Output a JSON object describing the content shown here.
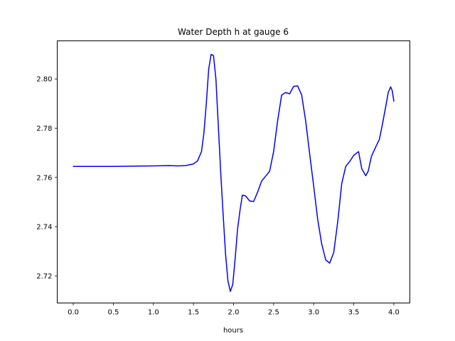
{
  "chart_data": {
    "type": "line",
    "title": "Water Depth h at gauge 6",
    "xlabel": "hours",
    "ylabel": "",
    "xlim": [
      -0.2,
      4.2
    ],
    "ylim": [
      2.709,
      2.8155
    ],
    "xticks": [
      0.0,
      0.5,
      1.0,
      1.5,
      2.0,
      2.5,
      3.0,
      3.5,
      4.0
    ],
    "xtick_labels": [
      "0.0",
      "0.5",
      "1.0",
      "1.5",
      "2.0",
      "2.5",
      "3.0",
      "3.5",
      "4.0"
    ],
    "yticks": [
      2.72,
      2.74,
      2.76,
      2.78,
      2.8
    ],
    "ytick_labels": [
      "2.72",
      "2.74",
      "2.76",
      "2.78",
      "2.80"
    ],
    "grid": false,
    "legend": false,
    "series": [
      {
        "color": "#0000ff",
        "x": [
          0.0,
          0.5,
          1.0,
          1.2,
          1.3,
          1.4,
          1.5,
          1.55,
          1.6,
          1.63,
          1.66,
          1.69,
          1.72,
          1.75,
          1.78,
          1.81,
          1.84,
          1.87,
          1.9,
          1.93,
          1.96,
          1.99,
          2.02,
          2.05,
          2.08,
          2.11,
          2.15,
          2.2,
          2.25,
          2.3,
          2.35,
          2.4,
          2.45,
          2.5,
          2.55,
          2.6,
          2.65,
          2.7,
          2.75,
          2.8,
          2.85,
          2.9,
          2.95,
          3.0,
          3.05,
          3.1,
          3.15,
          3.2,
          3.25,
          3.3,
          3.35,
          3.4,
          3.45,
          3.5,
          3.56,
          3.6,
          3.65,
          3.68,
          3.72,
          3.78,
          3.82,
          3.86,
          3.9,
          3.93,
          3.96,
          3.98,
          4.0
        ],
        "y": [
          2.7645,
          2.7645,
          2.7647,
          2.7648,
          2.7647,
          2.7648,
          2.7655,
          2.7667,
          2.7705,
          2.778,
          2.79,
          2.804,
          2.81,
          2.8095,
          2.8,
          2.781,
          2.762,
          2.745,
          2.729,
          2.718,
          2.7137,
          2.7165,
          2.727,
          2.739,
          2.7465,
          2.7528,
          2.7525,
          2.7505,
          2.7502,
          2.754,
          2.7585,
          2.7605,
          2.7625,
          2.7705,
          2.783,
          2.7935,
          2.7945,
          2.794,
          2.797,
          2.7972,
          2.7935,
          2.783,
          2.7695,
          2.7565,
          2.743,
          2.733,
          2.7265,
          2.7252,
          2.7295,
          2.742,
          2.7575,
          2.7645,
          2.7665,
          2.769,
          2.7705,
          2.7635,
          2.7607,
          2.7625,
          2.7685,
          2.7728,
          2.7755,
          2.782,
          2.789,
          2.7945,
          2.7968,
          2.7953,
          2.791
        ]
      }
    ]
  }
}
